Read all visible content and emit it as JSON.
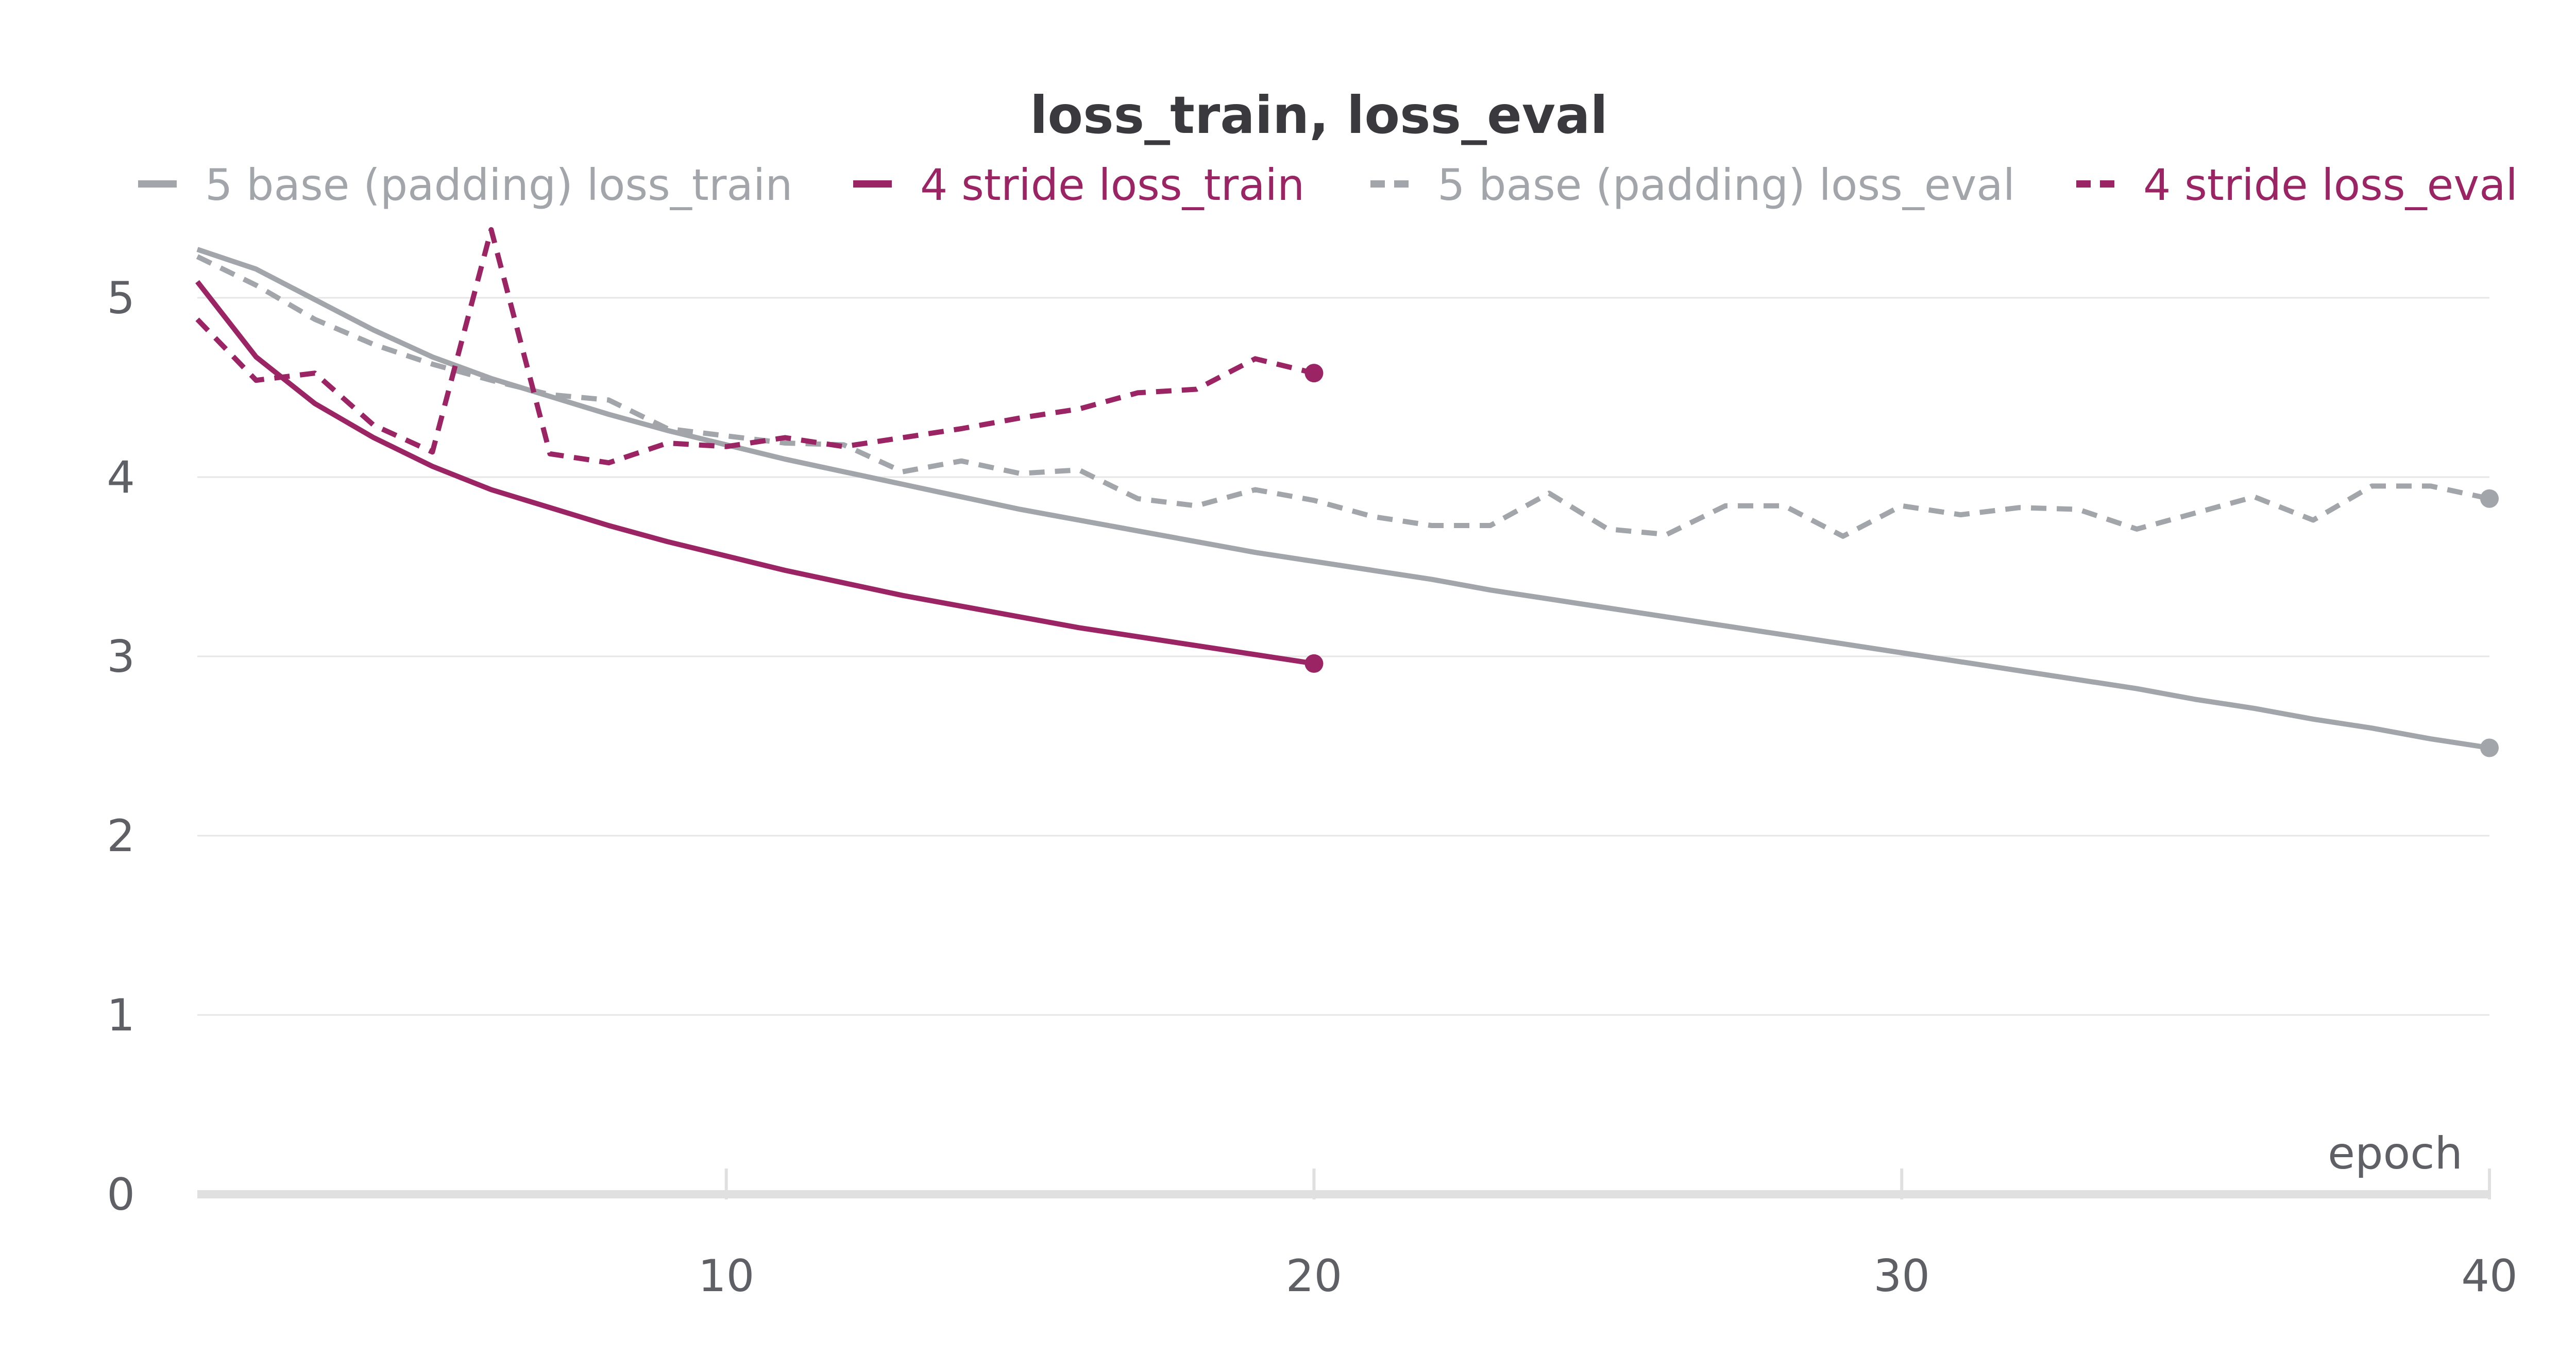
{
  "chart_data": {
    "type": "line",
    "title": "loss_train, loss_eval",
    "xlabel": "epoch",
    "ylabel": "",
    "xlim": [
      1,
      40
    ],
    "ylim": [
      0,
      5.5
    ],
    "xticks": [
      10,
      20,
      30,
      40
    ],
    "yticks": [
      0,
      1,
      2,
      3,
      4,
      5
    ],
    "grid": "horizontal",
    "legend_position": "top",
    "colors": {
      "gray": "#a2a6ab",
      "magenta": "#9b2564",
      "grid": "#e6e6e6",
      "axis": "#e0e0e0"
    },
    "series": [
      {
        "name": "5 base (padding) loss_train",
        "color": "#a2a6ab",
        "dash": false,
        "x": [
          1,
          2,
          3,
          4,
          5,
          6,
          7,
          8,
          9,
          10,
          11,
          12,
          13,
          14,
          15,
          16,
          17,
          18,
          19,
          20,
          21,
          22,
          23,
          24,
          25,
          26,
          27,
          28,
          29,
          30,
          31,
          32,
          33,
          34,
          35,
          36,
          37,
          38,
          39,
          40
        ],
        "y": [
          5.27,
          5.16,
          4.99,
          4.82,
          4.67,
          4.55,
          4.45,
          4.35,
          4.26,
          4.18,
          4.1,
          4.03,
          3.96,
          3.89,
          3.82,
          3.76,
          3.7,
          3.64,
          3.58,
          3.53,
          3.48,
          3.43,
          3.37,
          3.32,
          3.27,
          3.22,
          3.17,
          3.12,
          3.07,
          3.02,
          2.97,
          2.92,
          2.87,
          2.82,
          2.76,
          2.71,
          2.65,
          2.6,
          2.54,
          2.49
        ]
      },
      {
        "name": "4 stride loss_train",
        "color": "#9b2564",
        "dash": false,
        "x": [
          1,
          2,
          3,
          4,
          5,
          6,
          7,
          8,
          9,
          10,
          11,
          12,
          13,
          14,
          15,
          16,
          17,
          18,
          19,
          20
        ],
        "y": [
          5.09,
          4.67,
          4.41,
          4.22,
          4.06,
          3.93,
          3.83,
          3.73,
          3.64,
          3.56,
          3.48,
          3.41,
          3.34,
          3.28,
          3.22,
          3.16,
          3.11,
          3.06,
          3.01,
          2.96
        ]
      },
      {
        "name": "5 base (padding) loss_eval",
        "color": "#a2a6ab",
        "dash": true,
        "x": [
          1,
          2,
          3,
          4,
          5,
          6,
          7,
          8,
          9,
          10,
          11,
          12,
          13,
          14,
          15,
          16,
          17,
          18,
          19,
          20,
          21,
          22,
          23,
          24,
          25,
          26,
          27,
          28,
          29,
          30,
          31,
          32,
          33,
          34,
          35,
          36,
          37,
          38,
          39,
          40
        ],
        "y": [
          5.23,
          5.07,
          4.88,
          4.74,
          4.63,
          4.54,
          4.46,
          4.43,
          4.27,
          4.23,
          4.19,
          4.18,
          4.03,
          4.09,
          4.02,
          4.04,
          3.88,
          3.84,
          3.93,
          3.87,
          3.78,
          3.73,
          3.73,
          3.91,
          3.71,
          3.68,
          3.84,
          3.84,
          3.67,
          3.84,
          3.79,
          3.83,
          3.82,
          3.71,
          3.8,
          3.89,
          3.76,
          3.95,
          3.95,
          3.88
        ]
      },
      {
        "name": "4 stride loss_eval",
        "color": "#9b2564",
        "dash": true,
        "x": [
          1,
          2,
          3,
          4,
          5,
          6,
          7,
          8,
          9,
          10,
          11,
          12,
          13,
          14,
          15,
          16,
          17,
          18,
          19,
          20
        ],
        "y": [
          4.88,
          4.54,
          4.58,
          4.29,
          4.14,
          5.38,
          4.13,
          4.08,
          4.19,
          4.17,
          4.22,
          4.17,
          4.22,
          4.27,
          4.33,
          4.38,
          4.47,
          4.49,
          4.66,
          4.58
        ]
      }
    ]
  }
}
